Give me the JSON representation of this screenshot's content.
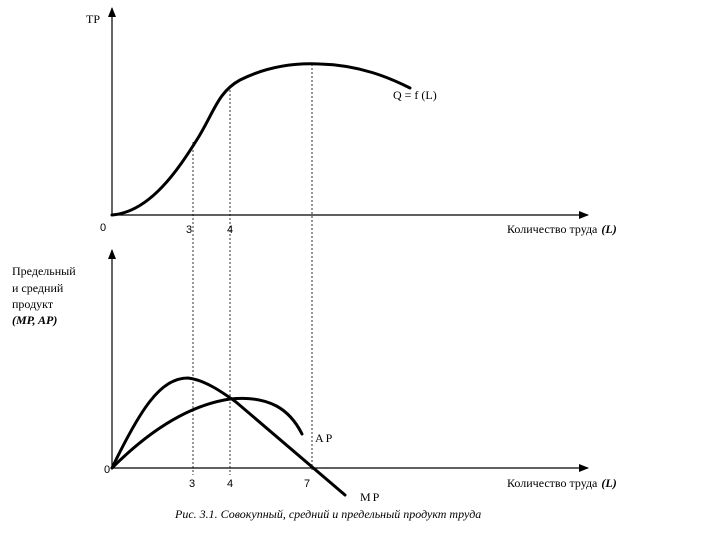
{
  "top_panel": {
    "y_label": "TP",
    "origin": "0",
    "x_ticks": [
      "3",
      "4"
    ],
    "curve_label": "Q = f (L)",
    "x_label_text": "Количество труда",
    "x_label_symbol": "(L)"
  },
  "bottom_panel": {
    "y_label_lines": [
      "Предельный",
      "и средний",
      "продукт"
    ],
    "y_label_symbols": "(MP, AP)",
    "origin": "0",
    "x_ticks": [
      "3",
      "4",
      "7"
    ],
    "ap_label": "AP",
    "mp_label": "MP",
    "x_label_text": "Количество труда",
    "x_label_symbol": "(L)"
  },
  "caption": "Рис. 3.1. Совокупный, средний и предельный продукт труда"
}
